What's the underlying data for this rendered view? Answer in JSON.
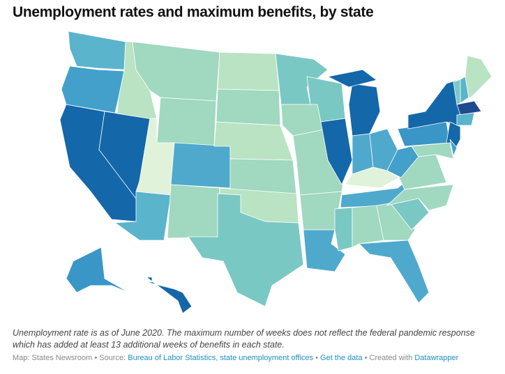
{
  "title": "Unemployment rates and maximum benefits, by state",
  "notes": "Unemployment rate is as of June 2020. The maximum number of weeks does not reflect the federal pandemic response which has added at least 13 additional weeks of benefits in each state.",
  "footer": {
    "map_by": "Map: States Newsroom",
    "sep1": " • Source: ",
    "source_link": "Bureau of Labor Statistics, state unemployment offices",
    "sep2": " • ",
    "data_link": "Get the data",
    "sep3": " • Created with ",
    "dw_link": "Datawrapper"
  },
  "state_fills": {
    "WA": "#5ab4cb",
    "OR": "#42a0cb",
    "CA": "#1467a9",
    "NV": "#1467a9",
    "ID": "#b9e3c2",
    "MT": "#a0d8c0",
    "WY": "#a0d8c0",
    "UT": "#e0f2da",
    "AZ": "#5ab4cb",
    "CO": "#4fa9cd",
    "NM": "#a0d8c0",
    "ND": "#b9e3c2",
    "SD": "#a0d8c0",
    "NE": "#b9e3c2",
    "KS": "#a0d8c0",
    "OK": "#b9e3c2",
    "TX": "#7ac8c4",
    "MN": "#7ac8c4",
    "IA": "#a0d8c0",
    "MO": "#a0d8c0",
    "AR": "#a0d8c0",
    "LA": "#4fa9cd",
    "WI": "#7ac8c4",
    "IL": "#1467a9",
    "MI": "#1467a9",
    "MIU": "#1467a9",
    "IN": "#4fa9cd",
    "OH": "#4fa9cd",
    "KY": "#e0f2da",
    "TN": "#4fa9cd",
    "MS": "#7ac8c4",
    "AL": "#a0d8c0",
    "GA": "#a0d8c0",
    "FL": "#4fa9cd",
    "SC": "#7ac8c4",
    "NC": "#a0d8c0",
    "VA": "#a0d8c0",
    "WV": "#42a0cb",
    "PA": "#3a96c6",
    "NY": "#1467a9",
    "NJ": "#1467a9",
    "MD": "#a0d8c0",
    "DE": "#42a0cb",
    "VT": "#7ac8c4",
    "NH": "#5ab4cb",
    "ME": "#b9e3c2",
    "MA": "#1f4b8e",
    "CT": "#5ab4cb",
    "AK": "#3a96c6",
    "HI": "#1467a9"
  }
}
